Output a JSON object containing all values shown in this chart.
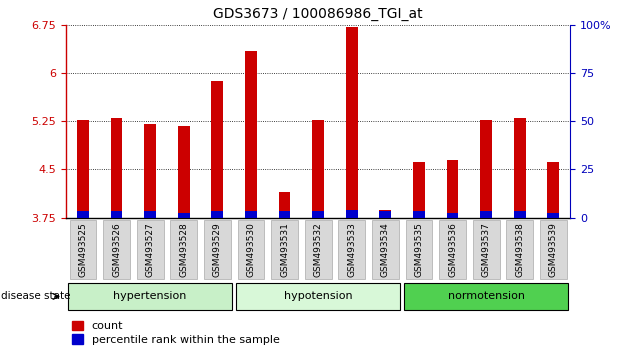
{
  "title": "GDS3673 / 100086986_TGI_at",
  "samples": [
    "GSM493525",
    "GSM493526",
    "GSM493527",
    "GSM493528",
    "GSM493529",
    "GSM493530",
    "GSM493531",
    "GSM493532",
    "GSM493533",
    "GSM493534",
    "GSM493535",
    "GSM493536",
    "GSM493537",
    "GSM493538",
    "GSM493539"
  ],
  "count_values": [
    5.27,
    5.3,
    5.2,
    5.17,
    5.87,
    6.35,
    4.15,
    5.27,
    6.72,
    3.87,
    4.62,
    4.65,
    5.27,
    5.3,
    4.62
  ],
  "percentile_values": [
    0.1,
    0.1,
    0.1,
    0.08,
    0.1,
    0.1,
    0.1,
    0.1,
    0.12,
    0.1,
    0.1,
    0.08,
    0.1,
    0.1,
    0.08
  ],
  "base": 3.75,
  "ylim_left": [
    3.75,
    6.75
  ],
  "ylim_right": [
    0,
    100
  ],
  "yticks_left": [
    3.75,
    4.5,
    5.25,
    6.0,
    6.75
  ],
  "ytick_labels_left": [
    "3.75",
    "4.5",
    "5.25",
    "6",
    "6.75"
  ],
  "yticks_right": [
    0,
    25,
    50,
    75,
    100
  ],
  "ytick_labels_right": [
    "0",
    "25",
    "50",
    "75",
    "100%"
  ],
  "groups": [
    {
      "name": "hypertension",
      "indices": [
        0,
        1,
        2,
        3,
        4
      ],
      "color": "#c8f0c8"
    },
    {
      "name": "hypotension",
      "indices": [
        5,
        6,
        7,
        8,
        9
      ],
      "color": "#d8f8d8"
    },
    {
      "name": "normotension",
      "indices": [
        10,
        11,
        12,
        13,
        14
      ],
      "color": "#50d050"
    }
  ],
  "bar_color_red": "#cc0000",
  "bar_color_blue": "#0000cc",
  "bar_width": 0.35,
  "legend_labels": [
    "count",
    "percentile rank within the sample"
  ],
  "disease_state_label": "disease state",
  "left_tick_color": "#cc0000",
  "right_tick_color": "#0000bb",
  "group_label_fontsize": 8,
  "tick_label_fontsize": 6.5,
  "title_fontsize": 10
}
